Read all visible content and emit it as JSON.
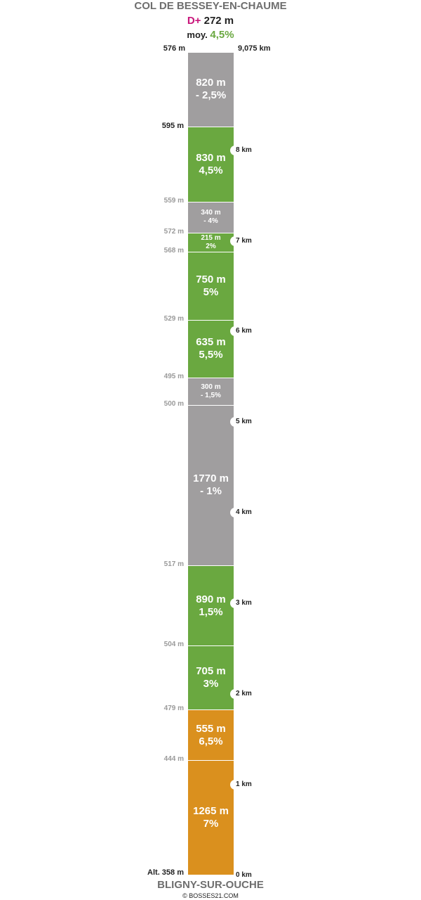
{
  "header": {
    "col_name": "COL DE BESSEY-EN-CHAUME",
    "dplus_label": "D+",
    "dplus_value": "272 m",
    "moy_label": "moy.",
    "moy_value": "4,5%"
  },
  "top": {
    "summit_alt": "576 m",
    "total_distance": "9,075 km"
  },
  "colors": {
    "flat_descent": "#a09e9f",
    "moderate": "#6aa840",
    "steep": "#da901e",
    "dplus": "#c8157a",
    "title": "#6e6e6e"
  },
  "segments": [
    {
      "length": "820 m",
      "grade": "- 2,5%",
      "category": "flat_descent",
      "length_m": 820
    },
    {
      "length": "830 m",
      "grade": "4,5%",
      "category": "moderate",
      "length_m": 830
    },
    {
      "length": "340 m",
      "grade": "- 4%",
      "category": "flat_descent",
      "length_m": 340
    },
    {
      "length": "215 m",
      "grade": "2%",
      "category": "moderate",
      "length_m": 215
    },
    {
      "length": "750 m",
      "grade": "5%",
      "category": "moderate",
      "length_m": 750
    },
    {
      "length": "635 m",
      "grade": "5,5%",
      "category": "moderate",
      "length_m": 635
    },
    {
      "length": "300 m",
      "grade": "- 1,5%",
      "category": "flat_descent",
      "length_m": 300
    },
    {
      "length": "1770 m",
      "grade": "- 1%",
      "category": "flat_descent",
      "length_m": 1770
    },
    {
      "length": "890 m",
      "grade": "1,5%",
      "category": "moderate",
      "length_m": 890
    },
    {
      "length": "705 m",
      "grade": "3%",
      "category": "moderate",
      "length_m": 705
    },
    {
      "length": "555 m",
      "grade": "6,5%",
      "category": "steep",
      "length_m": 555
    },
    {
      "length": "1265 m",
      "grade": "7%",
      "category": "steep",
      "length_m": 1265
    }
  ],
  "altitudes": [
    "595 m",
    "559 m",
    "572 m",
    "568 m",
    "529 m",
    "495 m",
    "500 m",
    "517 m",
    "504 m",
    "479 m",
    "444 m"
  ],
  "start_alt": "Alt. 358 m",
  "km_marks": [
    "8 km",
    "7 km",
    "6 km",
    "5 km",
    "4 km",
    "3 km",
    "2 km",
    "1 km",
    "0 km"
  ],
  "footer": {
    "start_name": "BLIGNY-SUR-OUCHE",
    "credit": "© BOSSES21.COM"
  }
}
